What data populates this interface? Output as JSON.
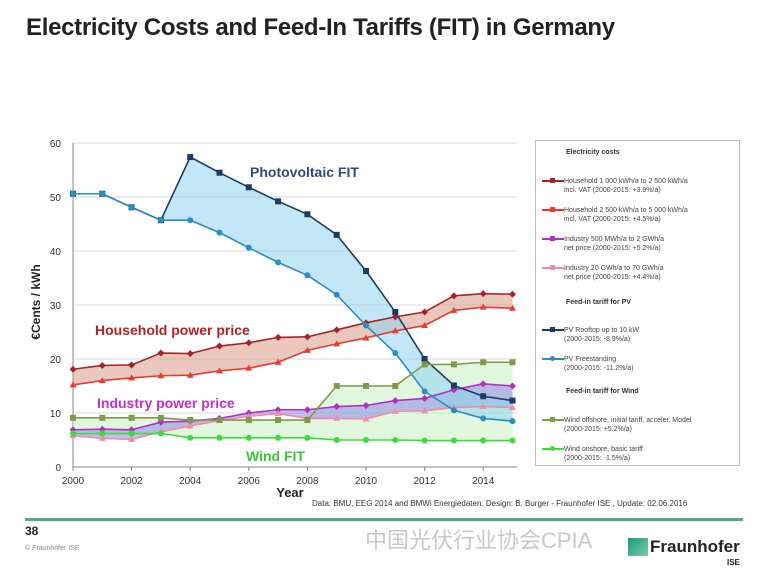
{
  "title": "Electricity Costs and Feed-In Tariffs (FIT) in Germany",
  "chart_data": {
    "type": "line",
    "xlabel": "Year",
    "ylabel": "€Cents / kWh",
    "x": [
      2000,
      2001,
      2002,
      2003,
      2004,
      2005,
      2006,
      2007,
      2008,
      2009,
      2010,
      2011,
      2012,
      2013,
      2014,
      2015
    ],
    "xticks": [
      "2000",
      "2002",
      "2004",
      "2006",
      "2008",
      "2010",
      "2012",
      "2014"
    ],
    "yticks": [
      "0",
      "10",
      "20",
      "30",
      "40",
      "50",
      "60"
    ],
    "ylim": [
      0,
      60
    ],
    "grid": "horizontal",
    "legend_position": "right",
    "series": [
      {
        "name": "Household 1 000 kWh/a to 2 500 kWh/a incl. VAT (2000-2015: +3.9%/a)",
        "color": "#a3252a",
        "marker": "diamond",
        "values": [
          18.1,
          18.8,
          18.9,
          21.1,
          21.0,
          22.4,
          23.0,
          24.0,
          24.1,
          25.4,
          26.7,
          27.8,
          28.7,
          31.7,
          32.1,
          32.0
        ]
      },
      {
        "name": "Household 2 500 kWh/a to 5 000 kWh/a incl. VAT (2000-2015: +4.5%/a)",
        "color": "#e63a32",
        "marker": "triangle",
        "values": [
          15.2,
          16.0,
          16.5,
          16.9,
          17.0,
          17.8,
          18.3,
          19.4,
          21.6,
          22.8,
          23.9,
          25.2,
          26.2,
          29.0,
          29.6,
          29.4
        ]
      },
      {
        "name": "Industry 500 MWh/a to 2 GWh/a net price (2000-2015: +5.2%/a)",
        "color": "#b32fc4",
        "marker": "diamond",
        "values": [
          6.9,
          7.0,
          6.9,
          8.3,
          8.5,
          9.0,
          10.0,
          10.6,
          10.6,
          11.2,
          11.4,
          12.3,
          12.7,
          14.3,
          15.4,
          15.0
        ]
      },
      {
        "name": "Industry 20 GWh/a to 70 GWh/a net price (2000-2015: +4.4%/a)",
        "color": "#f08ca6",
        "marker": "triangle",
        "values": [
          5.8,
          5.3,
          5.1,
          6.5,
          7.6,
          8.6,
          9.4,
          9.9,
          9.0,
          9.0,
          8.9,
          10.3,
          10.4,
          11.0,
          11.2,
          11.0
        ]
      },
      {
        "name": "PV Rooftop up to 10 kW (2000-2015: -8.9%/a)",
        "color": "#1f3a5f",
        "marker": "square",
        "values": [
          50.6,
          50.6,
          48.1,
          45.7,
          57.4,
          54.5,
          51.8,
          49.2,
          46.8,
          43.0,
          36.3,
          28.7,
          20.0,
          15.1,
          13.1,
          12.3
        ]
      },
      {
        "name": "PV Freestanding (2000-2015: -11.2%/a)",
        "color": "#2b8dc4",
        "marker": "circle",
        "values": [
          50.6,
          50.6,
          48.1,
          45.7,
          45.7,
          43.4,
          40.6,
          37.9,
          35.5,
          31.9,
          26.2,
          21.1,
          14.0,
          10.5,
          9.0,
          8.5
        ]
      },
      {
        "name": "Wind offshore, initial tariff, acceler. Model (2000-2015: +5.2%/a)",
        "color": "#7f9a4a",
        "marker": "square",
        "values": [
          9.1,
          9.1,
          9.1,
          9.1,
          8.7,
          8.7,
          8.7,
          8.7,
          8.7,
          15.0,
          15.0,
          15.0,
          19.0,
          19.0,
          19.4,
          19.4
        ]
      },
      {
        "name": "Wind onshore, basic tariff (2000-2015: -1.5%/a)",
        "color": "#3ddc3d",
        "marker": "circle",
        "values": [
          6.2,
          6.2,
          6.2,
          6.2,
          5.4,
          5.4,
          5.4,
          5.4,
          5.4,
          5.0,
          5.0,
          5.0,
          4.9,
          4.9,
          4.9,
          4.9
        ]
      }
    ],
    "annotations": [
      {
        "text": "Photovoltaic FIT",
        "color": "#2e4c7c"
      },
      {
        "text": "Household power price",
        "color": "#b22222"
      },
      {
        "text": "Industry power price",
        "color": "#c030c8"
      },
      {
        "text": "Wind FIT",
        "color": "#3cc43c"
      }
    ]
  },
  "legend": {
    "groups": [
      "Electricity costs",
      "Feed-in tariff for PV",
      "Feed-in tariff for Wind"
    ],
    "items": [
      {
        "line1": "Household 1 000 kWh/a to 2 500 kWh/a",
        "line2": "incl. VAT (2000-2015: +3.9%/a)"
      },
      {
        "line1": "Household 2 500 kWh/a to 5 000 kWh/a",
        "line2": "incl. VAT (2000-2015: +4.5%/a)"
      },
      {
        "line1": "Industry 500 MWh/a to 2 GWh/a",
        "line2": "net price (2000-2015: +5.2%/a)"
      },
      {
        "line1": "Industry 20 GWh/a to 70 GWh/a",
        "line2": "net price (2000-2015: +4.4%/a)"
      },
      {
        "line1": "PV Rooftop up to 10 kW",
        "line2": "(2000-2015: -8.9%/a)"
      },
      {
        "line1": "PV Freestanding",
        "line2": "(2000-2015: -11.2%/a)"
      },
      {
        "line1": "Wind offshore, initial tariff, acceler. Model",
        "line2": "(2000-2015: +5.2%/a)"
      },
      {
        "line1": "Wind onshore, basic tariff",
        "line2": "(2000-2015: -1.5%/a)"
      }
    ]
  },
  "source": "Data: BMU, EEG 2014 and BMWi Energiedaten. Design: B. Burger - Fraunhofer ISE , Update: 02.06.2016",
  "footer": {
    "page_number": "38",
    "copyright": "© Fraunhofer ISE",
    "watermark": "中国光伏行业协会CPIA",
    "logo": "Fraunhofer",
    "logo_sub": "ISE"
  }
}
